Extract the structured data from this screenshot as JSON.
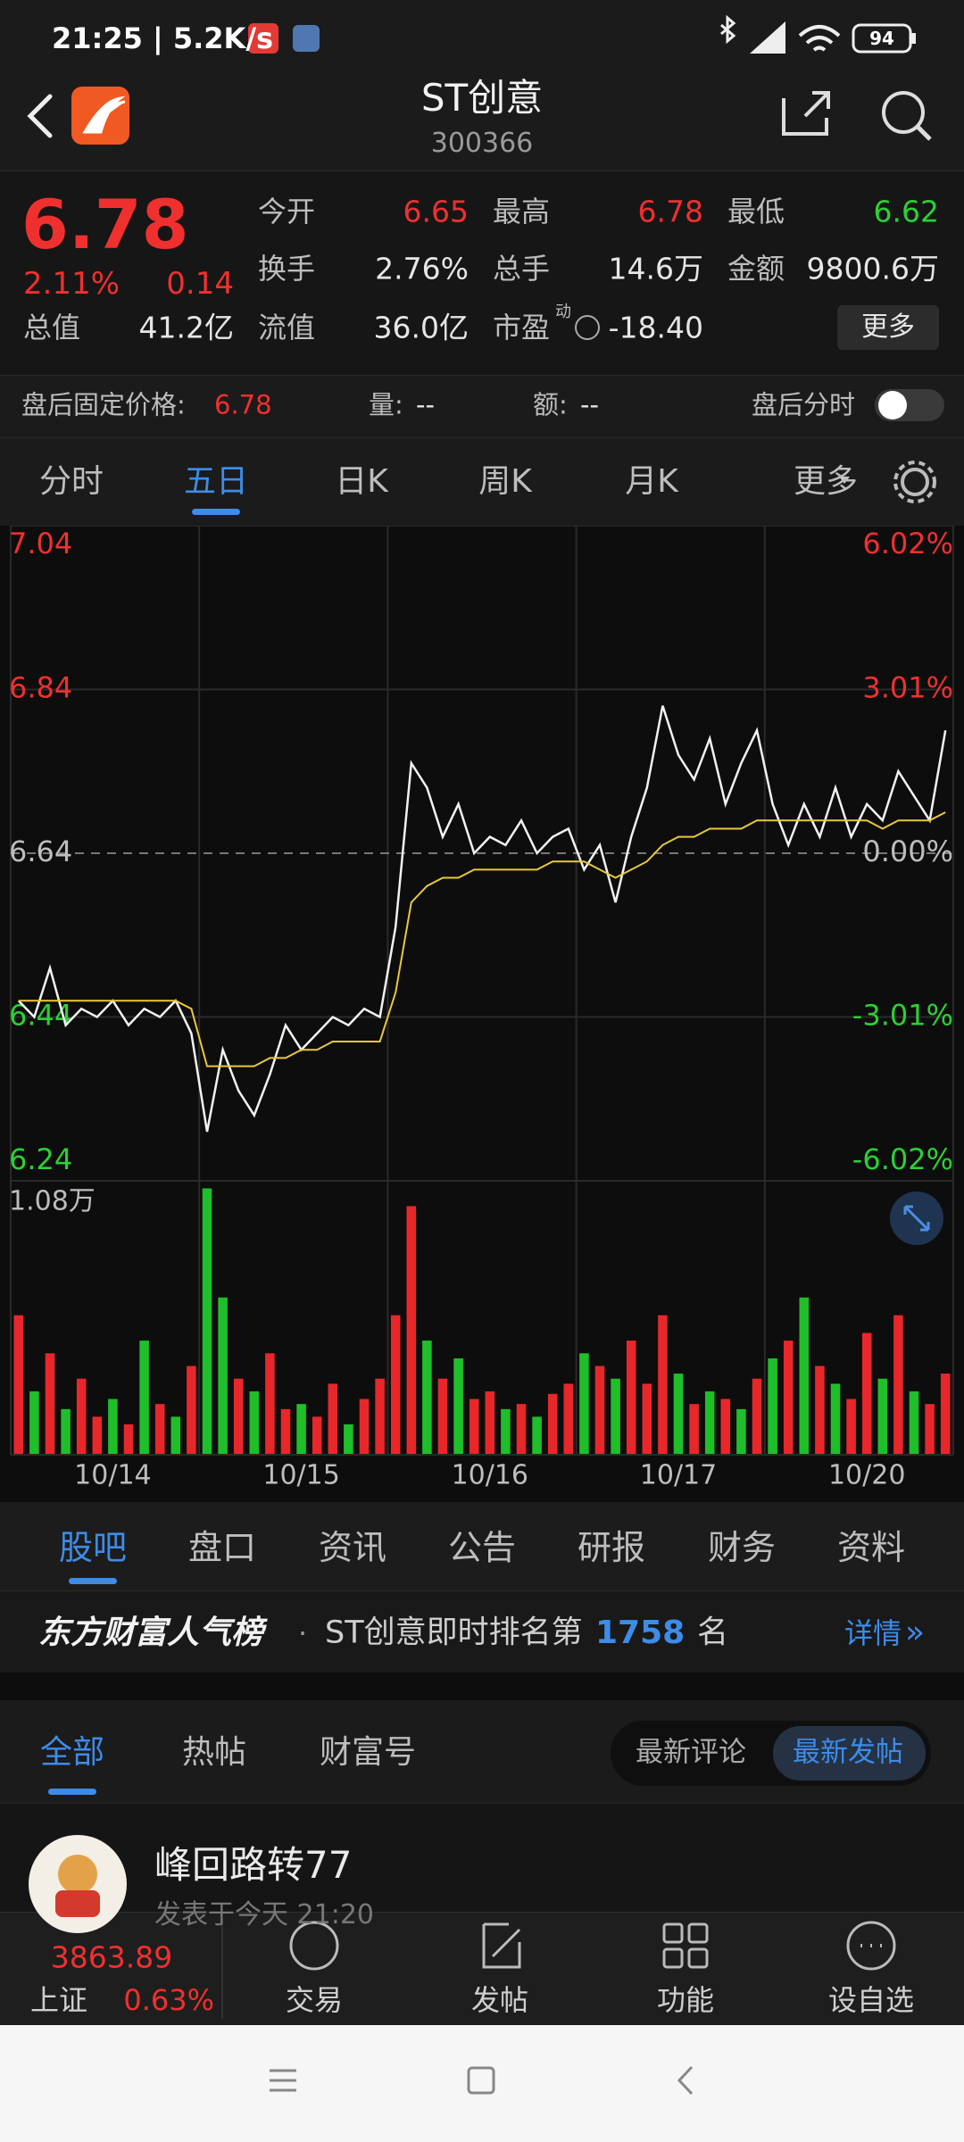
{
  "status_bar": {
    "time": "21:25 | 5.2K/s",
    "battery": "94"
  },
  "header": {
    "title": "ST创意",
    "code": "300366"
  },
  "quote": {
    "price": "6.78",
    "change_pct": "2.11%",
    "change": "0.14",
    "color": "#f0302f",
    "fields": [
      {
        "label": "今开",
        "value": "6.65",
        "color": "#f0302f"
      },
      {
        "label": "最高",
        "value": "6.78",
        "color": "#f0302f"
      },
      {
        "label": "最低",
        "value": "6.62",
        "color": "#2bd035"
      },
      {
        "label": "换手",
        "value": "2.76%",
        "color": "#e6e6e6"
      },
      {
        "label": "总手",
        "value": "14.6万",
        "color": "#e6e6e6"
      },
      {
        "label": "金额",
        "value": "9800.6万",
        "color": "#e6e6e6"
      },
      {
        "label": "总值",
        "value": "41.2亿",
        "color": "#e6e6e6"
      },
      {
        "label": "流值",
        "value": "36.0亿",
        "color": "#e6e6e6"
      },
      {
        "label": "市盈",
        "value": "-18.40",
        "color": "#e6e6e6"
      }
    ],
    "pe_badge": "动",
    "more": "更多"
  },
  "after_hours": {
    "label": "盘后固定价格:",
    "price": "6.78",
    "volume_label": "量:",
    "volume": "--",
    "amount_label": "额:",
    "amount": "--",
    "toggle_label": "盘后分时"
  },
  "chart_tabs": {
    "items": [
      "分时",
      "五日",
      "日K",
      "周K",
      "月K",
      "更多"
    ],
    "active": 1
  },
  "chart_data": [
    {
      "type": "line",
      "ylim": [
        6.24,
        7.04
      ],
      "yticks": [
        6.24,
        6.44,
        6.64,
        6.84,
        7.04
      ],
      "ytick_colors": [
        "#2bd035",
        "#2bd035",
        "#bdbdbd",
        "#f0302f",
        "#f0302f"
      ],
      "y2lim": [
        -6.02,
        6.02
      ],
      "y2ticks": [
        {
          "value": -6.02,
          "label": "-6.02%"
        },
        {
          "value": -3.01,
          "label": "-3.01%"
        },
        {
          "value": 0,
          "label": "0.00%"
        },
        {
          "value": 3.01,
          "label": "3.01%"
        },
        {
          "value": 6.02,
          "label": "6.02%"
        }
      ],
      "grid": true,
      "series": [
        {
          "color": "#f2f2f2",
          "values": [
            6.46,
            6.44,
            6.5,
            6.43,
            6.45,
            6.44,
            6.46,
            6.43,
            6.45,
            6.44,
            6.46,
            6.42,
            6.3,
            6.4,
            6.35,
            6.32,
            6.37,
            6.43,
            6.4,
            6.42,
            6.44,
            6.43,
            6.45,
            6.44,
            6.55,
            6.75,
            6.72,
            6.66,
            6.7,
            6.64,
            6.66,
            6.65,
            6.68,
            6.64,
            6.66,
            6.67,
            6.62,
            6.65,
            6.58,
            6.66,
            6.72,
            6.82,
            6.76,
            6.73,
            6.78,
            6.7,
            6.75,
            6.79,
            6.7,
            6.65,
            6.7,
            6.66,
            6.72,
            6.66,
            6.7,
            6.68,
            6.74,
            6.71,
            6.68,
            6.79
          ]
        },
        {
          "color": "#e8c93a",
          "values": [
            6.46,
            6.46,
            6.46,
            6.46,
            6.46,
            6.46,
            6.46,
            6.46,
            6.46,
            6.46,
            6.46,
            6.45,
            6.38,
            6.38,
            6.38,
            6.38,
            6.39,
            6.39,
            6.4,
            6.4,
            6.41,
            6.41,
            6.41,
            6.41,
            6.47,
            6.58,
            6.6,
            6.61,
            6.61,
            6.62,
            6.62,
            6.62,
            6.62,
            6.62,
            6.63,
            6.63,
            6.63,
            6.62,
            6.61,
            6.62,
            6.63,
            6.65,
            6.66,
            6.66,
            6.67,
            6.67,
            6.67,
            6.68,
            6.68,
            6.68,
            6.68,
            6.68,
            6.68,
            6.68,
            6.68,
            6.67,
            6.68,
            6.68,
            6.68,
            6.69
          ]
        }
      ]
    },
    {
      "type": "bar",
      "ylim": [
        0,
        1.08
      ],
      "yticks": [
        {
          "value": 1.08,
          "label": "1.08万"
        }
      ],
      "categories": [
        null,
        null,
        null,
        null,
        null,
        null,
        "10/14",
        null,
        null,
        null,
        null,
        null,
        null,
        null,
        null,
        null,
        null,
        null,
        "10/15",
        null,
        null,
        null,
        null,
        null,
        null,
        null,
        null,
        null,
        null,
        null,
        "10/16",
        null,
        null,
        null,
        null,
        null,
        null,
        null,
        null,
        null,
        null,
        null,
        "10/17",
        null,
        null,
        null,
        null,
        null,
        null,
        null,
        null,
        null,
        null,
        null,
        "10/20",
        null,
        null,
        null,
        null,
        null
      ],
      "values": [
        0.55,
        0.25,
        0.4,
        0.18,
        0.3,
        0.15,
        0.22,
        0.12,
        0.45,
        0.2,
        0.15,
        0.35,
        1.05,
        0.62,
        0.3,
        0.25,
        0.4,
        0.18,
        0.2,
        0.15,
        0.28,
        0.12,
        0.22,
        0.3,
        0.55,
        0.98,
        0.45,
        0.3,
        0.38,
        0.22,
        0.25,
        0.18,
        0.2,
        0.15,
        0.24,
        0.28,
        0.4,
        0.35,
        0.3,
        0.45,
        0.28,
        0.55,
        0.32,
        0.2,
        0.25,
        0.22,
        0.18,
        0.3,
        0.38,
        0.45,
        0.62,
        0.35,
        0.28,
        0.22,
        0.48,
        0.3,
        0.55,
        0.25,
        0.2,
        0.32
      ],
      "colors": [
        "#e8272b",
        "#1fbf2a",
        "#e8272b",
        "#1fbf2a",
        "#e8272b",
        "#e8272b",
        "#1fbf2a",
        "#e8272b",
        "#1fbf2a",
        "#e8272b",
        "#1fbf2a",
        "#e8272b",
        "#1fbf2a",
        "#1fbf2a",
        "#e8272b",
        "#1fbf2a",
        "#e8272b",
        "#e8272b",
        "#1fbf2a",
        "#e8272b",
        "#e8272b",
        "#1fbf2a",
        "#e8272b",
        "#e8272b",
        "#e8272b",
        "#e8272b",
        "#1fbf2a",
        "#e8272b",
        "#1fbf2a",
        "#e8272b",
        "#e8272b",
        "#1fbf2a",
        "#e8272b",
        "#1fbf2a",
        "#e8272b",
        "#e8272b",
        "#1fbf2a",
        "#e8272b",
        "#1fbf2a",
        "#e8272b",
        "#e8272b",
        "#e8272b",
        "#1fbf2a",
        "#e8272b",
        "#1fbf2a",
        "#e8272b",
        "#1fbf2a",
        "#e8272b",
        "#1fbf2a",
        "#e8272b",
        "#1fbf2a",
        "#e8272b",
        "#1fbf2a",
        "#e8272b",
        "#e8272b",
        "#1fbf2a",
        "#e8272b",
        "#1fbf2a",
        "#e8272b",
        "#e8272b"
      ]
    }
  ],
  "info_tabs": {
    "items": [
      "股吧",
      "盘口",
      "资讯",
      "公告",
      "研报",
      "财务",
      "资料"
    ],
    "active": 0
  },
  "ranking": {
    "brand": "东方财富人气榜",
    "separator": "·",
    "text": "ST创意即时排名第",
    "rank": "1758",
    "suffix": "名",
    "link": "详情"
  },
  "feed_tabs": {
    "items": [
      "全部",
      "热帖",
      "财富号"
    ],
    "active": 0,
    "sort": [
      "最新评论",
      "最新发帖"
    ],
    "sort_active": 1
  },
  "post": {
    "author": "峰回路转77",
    "meta": "发表于今天 21:20"
  },
  "bottom_bar": {
    "index_value": "3863.89",
    "index_name": "上证",
    "index_change": "0.63%",
    "actions": [
      "交易",
      "发帖",
      "功能",
      "设自选"
    ]
  }
}
